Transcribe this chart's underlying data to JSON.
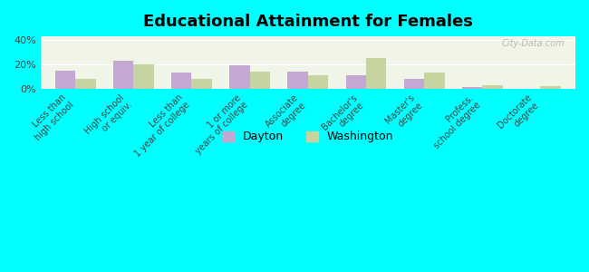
{
  "title": "Educational Attainment for Females",
  "categories": [
    "Less than\nhigh school",
    "High school\nor equiv.",
    "Less than\n1 year of college",
    "1 or more\nyears of college",
    "Associate\ndegree",
    "Bachelor's\ndegree",
    "Master's\ndegree",
    "Profess.\nschool degree",
    "Doctorate\ndegree"
  ],
  "dayton": [
    15,
    23,
    13,
    19,
    14,
    11,
    8,
    1.5,
    0
  ],
  "washington": [
    8,
    20,
    8,
    14,
    11,
    25,
    13,
    2.5,
    2
  ],
  "dayton_color": "#c4a8d4",
  "washington_color": "#c8d4a0",
  "background_color": "#00ffff",
  "plot_bg": "#f0f5e8",
  "yticks": [
    0,
    20,
    40
  ],
  "ylim": [
    0,
    43
  ],
  "bar_width": 0.35
}
